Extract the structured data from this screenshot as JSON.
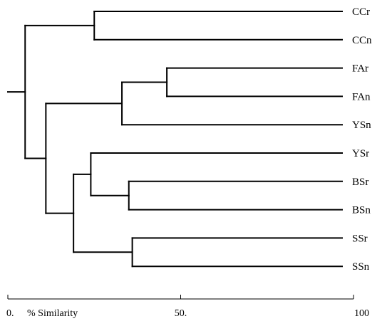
{
  "chart_data": {
    "type": "dendrogram",
    "leaves": [
      "CCr",
      "CCn",
      "FAr",
      "FAn",
      "YSn",
      "YSr",
      "BSr",
      "BSn",
      "SSr",
      "SSn"
    ],
    "merges": [
      {
        "id": "m_cc",
        "children": [
          "CCr",
          "CCn"
        ],
        "similarity": 25
      },
      {
        "id": "m_fa",
        "children": [
          "FAr",
          "FAn"
        ],
        "similarity": 46
      },
      {
        "id": "m_fay",
        "children": [
          "m_fa",
          "YSn"
        ],
        "similarity": 33
      },
      {
        "id": "m_bs",
        "children": [
          "BSr",
          "BSn"
        ],
        "similarity": 35
      },
      {
        "id": "m_ybs",
        "children": [
          "YSr",
          "m_bs"
        ],
        "similarity": 24
      },
      {
        "id": "m_ss",
        "children": [
          "SSr",
          "SSn"
        ],
        "similarity": 36
      },
      {
        "id": "m_ybss",
        "children": [
          "m_ybs",
          "m_ss"
        ],
        "similarity": 19
      },
      {
        "id": "m_lower",
        "children": [
          "m_fay",
          "m_ybss"
        ],
        "similarity": 11
      },
      {
        "id": "m_root",
        "children": [
          "m_cc",
          "m_lower"
        ],
        "similarity": 5
      },
      {
        "id": "m_stem",
        "children": [
          "m_root"
        ],
        "similarity": 0
      }
    ],
    "axis": {
      "range": [
        0,
        100
      ],
      "tick_labels": [
        {
          "value": 0,
          "label": "0."
        },
        {
          "value": 50,
          "label": "50."
        },
        {
          "value": 100,
          "label": "100"
        }
      ],
      "label": "% Similarity"
    }
  }
}
